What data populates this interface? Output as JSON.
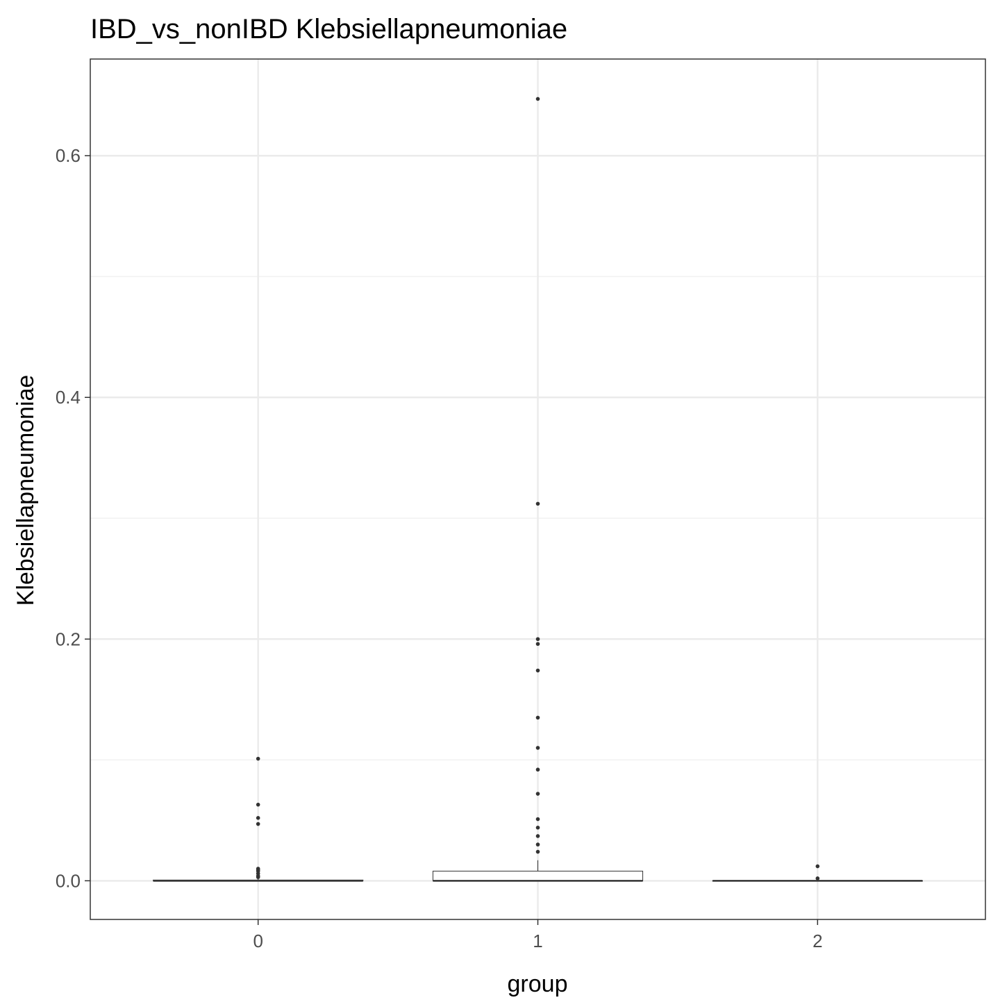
{
  "chart_data": {
    "type": "box",
    "title": "IBD_vs_nonIBD Klebsiellapneumoniae",
    "xlabel": "group",
    "ylabel": "Klebsiellapneumoniae",
    "categories": [
      "0",
      "1",
      "2"
    ],
    "ylim": [
      -0.032,
      0.68
    ],
    "yticks": [
      0.0,
      0.2,
      0.4,
      0.6
    ],
    "ytick_labels": [
      "0.0",
      "0.2",
      "0.4",
      "0.6"
    ],
    "grid": true,
    "boxes": [
      {
        "group": "0",
        "min": 0.0,
        "q1": 0.0,
        "median": 0.0,
        "q3": 0.0006,
        "max": 0.0015,
        "outliers": [
          0.101,
          0.063,
          0.052,
          0.047,
          0.01,
          0.009,
          0.008,
          0.006,
          0.004,
          0.003
        ]
      },
      {
        "group": "1",
        "min": 0.0,
        "q1": 0.0,
        "median": 0.0,
        "q3": 0.008,
        "max": 0.017,
        "outliers": [
          0.647,
          0.312,
          0.2,
          0.196,
          0.174,
          0.135,
          0.11,
          0.092,
          0.072,
          0.051,
          0.044,
          0.037,
          0.03,
          0.024
        ]
      },
      {
        "group": "2",
        "min": 0.0,
        "q1": 0.0,
        "median": 0.0,
        "q3": 0.0,
        "max": 0.0,
        "outliers": [
          0.012,
          0.002
        ]
      }
    ],
    "colors": {
      "panel_border": "#333333",
      "grid_major": "#ebebeb",
      "grid_minor": "#f2f2f2",
      "box_line": "#333333",
      "box_fill": "#ffffff",
      "point": "#333333",
      "tick": "#333333",
      "tick_label": "#4d4d4d"
    }
  }
}
